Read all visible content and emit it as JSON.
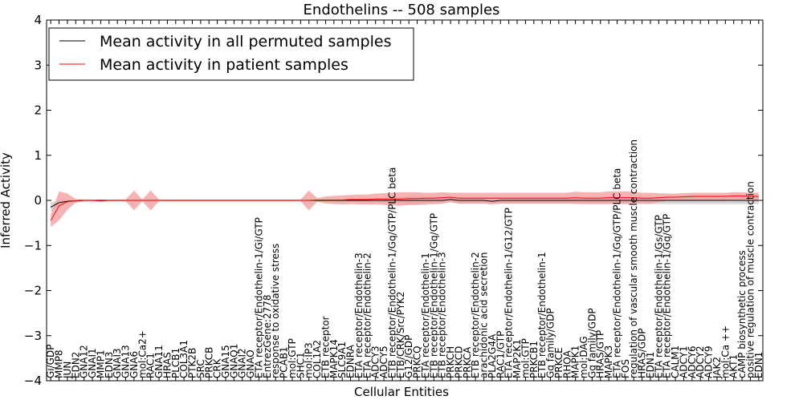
{
  "chart_data": {
    "type": "line",
    "title": "Endothelins -- 508 samples",
    "xlabel": "Cellular Entities",
    "ylabel": "Inferred Activity",
    "ylim": [
      -4,
      4
    ],
    "yticks": [
      -4,
      -3,
      -2,
      -1,
      0,
      1,
      2,
      3,
      4
    ],
    "ytick_labels": [
      "−4",
      "−3",
      "−2",
      "−1",
      "0",
      "1",
      "2",
      "3",
      "4"
    ],
    "grid": false,
    "legend_position": "top-left",
    "series_colors": {
      "permuted": "#000000",
      "patient": "#ff0000"
    },
    "band_colors": {
      "permuted": "#c8c8c8",
      "patient": "#f5a0a0"
    },
    "categories": [
      "Gi/GDP",
      "MMP8",
      "JUN",
      "EDN2",
      "GNA12",
      "GNAI1",
      "MMP1",
      "EDN3",
      "GNAI3",
      "GNA13",
      "GNA6",
      "mol:Ca2+",
      "RAC1",
      "GNA11",
      "HRAS",
      "PLCB1",
      "COL3A1",
      "PTK2B",
      "SRC",
      "PRKCB",
      "CRK",
      "GNA15",
      "GNAQ1",
      "GNAI2",
      "GNAO",
      "ETA receptor/Endothelin-1/Gi/GTP",
      "EntrezGene:2778",
      "response to oxidative stress",
      "PCAB1",
      "mol:GTP",
      "SHC1",
      "mol:IP3",
      "COL1A2",
      "ETB receptor",
      "MAPK14",
      "SLC9A1",
      "EDNRA",
      "ETA receptor/Endothelin-3",
      "ETA receptor/Endothelin-2",
      "ADCY3",
      "ADCY5",
      "ETB receptor/Endothelin-1/Gq/GTP/PLC beta",
      "ETB/CRK/Src/PYK2",
      "G12/GDP",
      "PRKCQ",
      "ETA receptor/Endothelin-1",
      "ETB receptor/Endothelin-1/Gq/GTP",
      "ETB receptor/Endothelin-3",
      "PRKCH",
      "PRKCD",
      "PRKCA",
      "ETB receptor/Endothelin-2",
      "arachidonic acid secretion",
      "PLA2G4A",
      "RAC1/GTP",
      "ETA receptor/Endothelin-1/G12/GTP",
      "MAP2K1",
      "mol:GTP",
      "PRKCB1",
      "ETB receptor/Endothelin-1",
      "Gq family/GDP",
      "PRKCE",
      "RHOA",
      "MAPK1",
      "mol:DAG",
      "Gq family/GDP",
      "HRAS/GTP",
      "MAPK3",
      "ETA receptor/Endothelin-1/Gq/GTP/PLC beta",
      "FOS",
      "regulation of vascular smooth muscle contraction",
      "HRAS/GDP",
      "EDN1",
      "ETA receptor/Endothelin-1/Gs/GTP",
      "ETA receptor/Endothelin-1/Gq/GTP",
      "CALM1",
      "ADCY1",
      "ADCY6",
      "ADCY2",
      "ADCY9",
      "JAK2",
      "mol:Ca ++",
      "AKT1",
      "cAMP biosynthetic process",
      "positive regulation of muscle contraction",
      "EDN1"
    ],
    "series": [
      {
        "name": "Mean activity in all permuted samples",
        "values": [
          -0.15,
          -0.05,
          -0.02,
          -0.01,
          0.0,
          0.0,
          0.0,
          0.0,
          0.0,
          0.0,
          0.0,
          0.0,
          0.0,
          0.0,
          0.0,
          0.0,
          0.0,
          0.0,
          0.0,
          0.0,
          0.0,
          0.0,
          0.0,
          0.0,
          0.0,
          0.0,
          0.0,
          0.0,
          0.0,
          0.0,
          0.0,
          0.0,
          0.0,
          0.0,
          0.0,
          0.0,
          0.0,
          0.0,
          0.0,
          0.0,
          0.0,
          0.0,
          0.0,
          0.0,
          0.0,
          0.0,
          0.0,
          0.0,
          0.02,
          0.0,
          0.0,
          0.0,
          0.0,
          -0.02,
          0.0,
          0.0,
          0.0,
          0.0,
          0.0,
          0.0,
          0.0,
          0.0,
          0.0,
          0.0,
          0.0,
          0.0,
          0.0,
          0.0,
          0.0,
          0.0,
          0.0,
          0.0,
          0.0,
          0.0,
          0.0,
          0.0,
          0.0,
          0.0,
          0.0,
          0.0,
          0.0,
          0.0,
          0.0,
          0.0,
          0.0,
          0.0
        ],
        "band": [
          0.1,
          0.05,
          0.03,
          0.02,
          0.02,
          0.02,
          0.02,
          0.02,
          0.02,
          0.02,
          0.02,
          0.02,
          0.02,
          0.02,
          0.02,
          0.02,
          0.02,
          0.02,
          0.02,
          0.02,
          0.02,
          0.02,
          0.02,
          0.02,
          0.02,
          0.02,
          0.02,
          0.02,
          0.02,
          0.02,
          0.02,
          0.02,
          0.02,
          0.02,
          0.02,
          0.03,
          0.03,
          0.03,
          0.04,
          0.04,
          0.05,
          0.06,
          0.08,
          0.1,
          0.1,
          0.1,
          0.09,
          0.08,
          0.07,
          0.07,
          0.07,
          0.07,
          0.07,
          0.08,
          0.07,
          0.07,
          0.07,
          0.07,
          0.07,
          0.07,
          0.07,
          0.07,
          0.07,
          0.08,
          0.08,
          0.08,
          0.08,
          0.08,
          0.08,
          0.08,
          0.08,
          0.08,
          0.08,
          0.08,
          0.08,
          0.08,
          0.08,
          0.08,
          0.08,
          0.08,
          0.08,
          0.08,
          0.08,
          0.08,
          0.08,
          0.08
        ]
      },
      {
        "name": "Mean activity in patient samples",
        "values": [
          -0.45,
          -0.12,
          -0.03,
          -0.01,
          0.0,
          0.0,
          -0.01,
          0.0,
          0.0,
          0.0,
          0.0,
          0.0,
          0.0,
          0.0,
          0.0,
          0.0,
          0.0,
          0.0,
          0.0,
          0.0,
          0.0,
          0.0,
          0.0,
          0.0,
          0.0,
          0.0,
          0.0,
          0.0,
          0.0,
          0.0,
          0.0,
          0.0,
          0.01,
          0.01,
          0.01,
          0.01,
          0.02,
          0.02,
          0.02,
          0.03,
          0.03,
          0.03,
          0.03,
          0.04,
          0.04,
          0.05,
          0.05,
          0.06,
          0.07,
          0.05,
          0.05,
          0.05,
          0.05,
          0.05,
          0.05,
          0.05,
          0.05,
          0.05,
          0.05,
          0.05,
          0.05,
          0.05,
          0.05,
          0.06,
          0.05,
          0.05,
          0.05,
          0.06,
          0.06,
          0.06,
          0.06,
          0.05,
          0.05,
          0.06,
          0.07,
          0.07,
          0.08,
          0.09,
          0.09,
          0.09,
          0.09,
          0.09,
          0.1,
          0.1,
          0.09,
          0.09
        ],
        "band": [
          0.14,
          0.32,
          0.18,
          0.04,
          0.02,
          0.02,
          0.02,
          0.02,
          0.02,
          0.02,
          0.22,
          0.02,
          0.22,
          0.02,
          0.02,
          0.02,
          0.02,
          0.02,
          0.02,
          0.02,
          0.02,
          0.02,
          0.02,
          0.02,
          0.02,
          0.02,
          0.02,
          0.02,
          0.02,
          0.02,
          0.02,
          0.22,
          0.04,
          0.08,
          0.09,
          0.1,
          0.1,
          0.11,
          0.11,
          0.12,
          0.13,
          0.14,
          0.15,
          0.14,
          0.14,
          0.12,
          0.12,
          0.12,
          0.1,
          0.12,
          0.12,
          0.12,
          0.12,
          0.12,
          0.12,
          0.12,
          0.12,
          0.12,
          0.12,
          0.12,
          0.12,
          0.12,
          0.12,
          0.13,
          0.13,
          0.13,
          0.13,
          0.14,
          0.14,
          0.14,
          0.13,
          0.12,
          0.12,
          0.1,
          0.08,
          0.08,
          0.08,
          0.08,
          0.08,
          0.08,
          0.08,
          0.08,
          0.08,
          0.08,
          0.08,
          0.08
        ]
      }
    ]
  }
}
